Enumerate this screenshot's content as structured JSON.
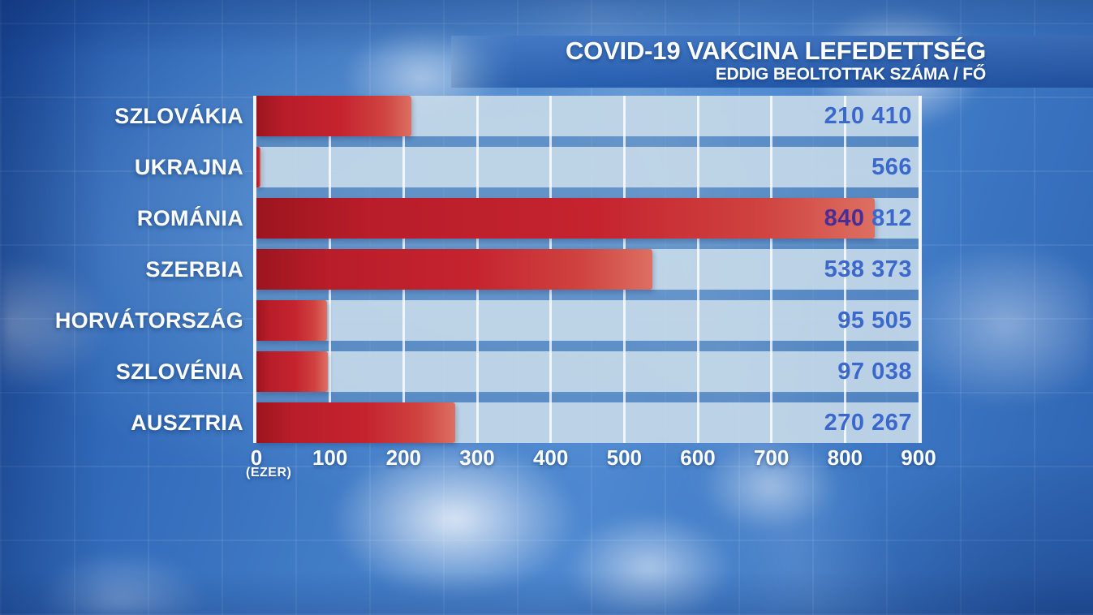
{
  "header": {
    "title": "COVID-19 VAKCINA LEFEDETTSÉG",
    "subtitle": "EDDIG BEOLTOTTAK SZÁMA / FŐ"
  },
  "chart_data": {
    "type": "bar",
    "orientation": "horizontal",
    "title": "COVID-19 VAKCINA LEFEDETTSÉG",
    "subtitle": "EDDIG BEOLTOTTAK SZÁMA / FŐ",
    "x_unit_label": "(EZER)",
    "xlim": [
      0,
      900
    ],
    "x_ticks": [
      "0",
      "100",
      "200",
      "300",
      "400",
      "500",
      "600",
      "700",
      "800",
      "900"
    ],
    "grid": true,
    "legend": "none",
    "categories": [
      "SZLOVÁKIA",
      "UKRAJNA",
      "ROMÁNIA",
      "SZERBIA",
      "HORVÁTORSZÁG",
      "SZLOVÉNIA",
      "AUSZTRIA"
    ],
    "values": [
      210410,
      566,
      840812,
      538373,
      95505,
      97038,
      270267
    ],
    "rows": [
      {
        "label": "SZLOVÁKIA",
        "value": 210410,
        "value_label": "210 410"
      },
      {
        "label": "UKRAJNA",
        "value": 566,
        "value_label": "566"
      },
      {
        "label": "ROMÁNIA",
        "value": 840812,
        "value_label": "840 812",
        "value_label_parts": [
          {
            "text": "840",
            "color": "#4a2e97"
          },
          {
            "text": " 812",
            "color": "#3a68cc"
          }
        ]
      },
      {
        "label": "SZERBIA",
        "value": 538373,
        "value_label": "538 373"
      },
      {
        "label": "HORVÁTORSZÁG",
        "value": 95505,
        "value_label": "95 505"
      },
      {
        "label": "SZLOVÉNIA",
        "value": 97038,
        "value_label": "97 038"
      },
      {
        "label": "AUSZTRIA",
        "value": 270267,
        "value_label": "270 267"
      }
    ],
    "colors": {
      "bar": "#c5242f",
      "value_text": "#3a68cc",
      "label_text": "#ffffff",
      "title_band": "#2459ab",
      "row_band": "#b5c9d8",
      "background": "#3d78c4"
    }
  }
}
